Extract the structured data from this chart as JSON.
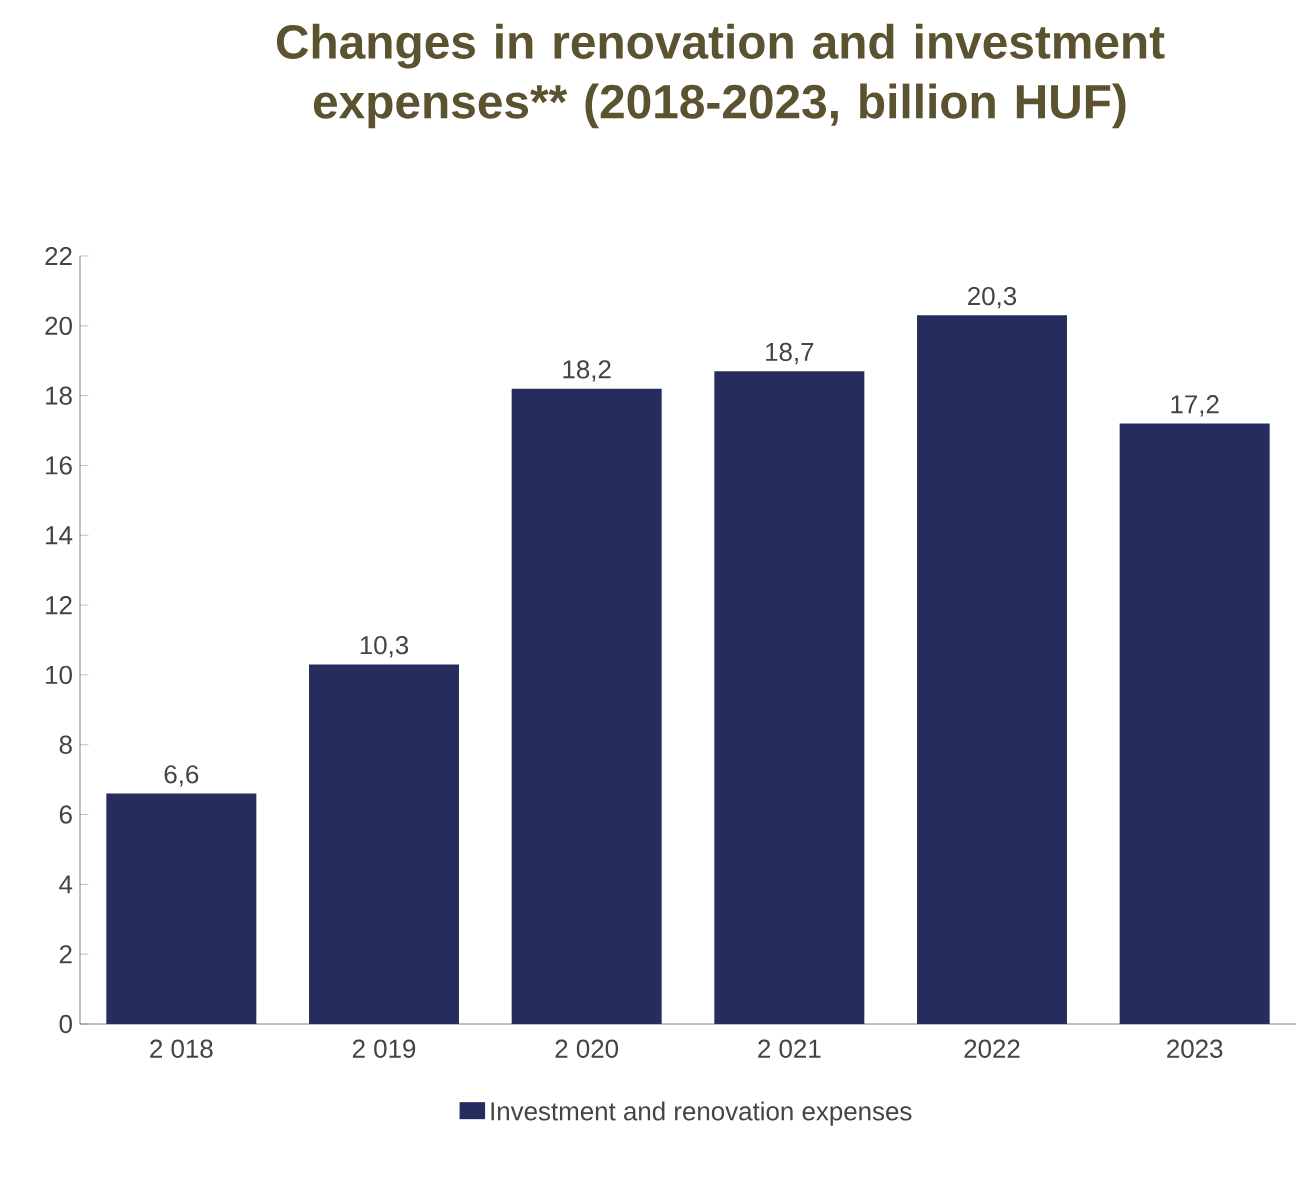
{
  "chart_data": {
    "type": "bar",
    "title": "Changes in renovation and investment expenses** (2018-2023, billion HUF)",
    "categories": [
      "2 018",
      "2 019",
      "2 020",
      "2 021",
      "2022",
      "2023"
    ],
    "series": [
      {
        "name": "Investment and renovation expenses",
        "color": "#262c5e",
        "values": [
          6.6,
          10.3,
          18.2,
          18.7,
          20.3,
          17.2
        ],
        "value_labels": [
          "6,6",
          "10,3",
          "18,2",
          "18,7",
          "20,3",
          "17,2"
        ]
      }
    ],
    "ylim": [
      0,
      22
    ],
    "yticks": [
      0,
      2,
      4,
      6,
      8,
      10,
      12,
      14,
      16,
      18,
      20,
      22
    ],
    "grid": false,
    "legend": "bottom"
  }
}
